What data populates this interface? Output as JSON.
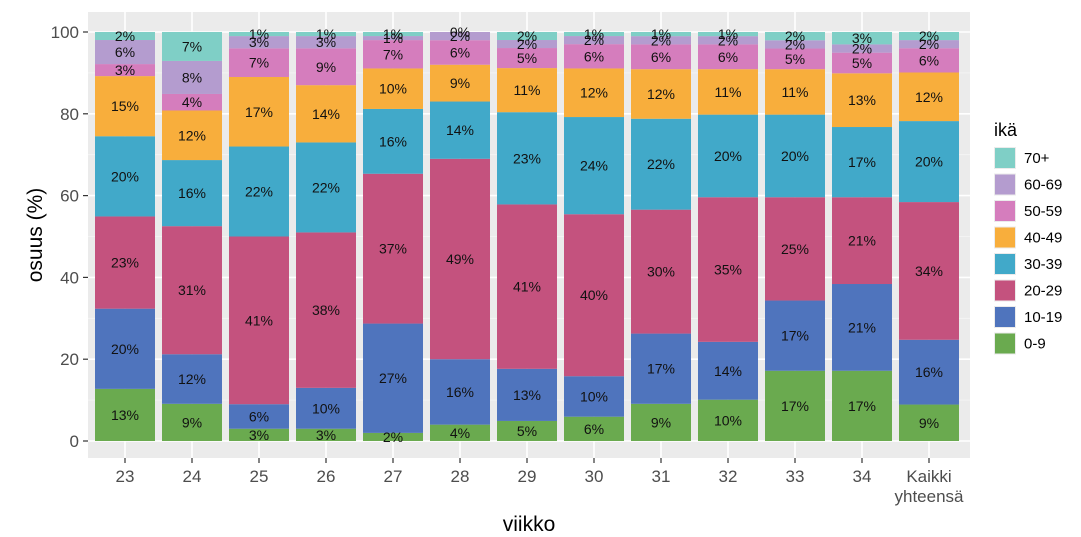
{
  "chart_data": {
    "type": "bar",
    "stacked": true,
    "xlabel": "viikko",
    "ylabel": "osuus (%)",
    "ylim": [
      0,
      100
    ],
    "yticks": [
      0,
      20,
      40,
      60,
      80,
      100
    ],
    "categories": [
      "23",
      "24",
      "25",
      "26",
      "27",
      "28",
      "29",
      "30",
      "31",
      "32",
      "33",
      "34",
      "Kaikki yhteensä"
    ],
    "grid": true,
    "legend": {
      "title": "ikä",
      "position": "right",
      "order": [
        "70+",
        "60-69",
        "50-59",
        "40-49",
        "30-39",
        "20-29",
        "10-19",
        "0-9"
      ]
    },
    "series": [
      {
        "name": "0-9",
        "color": "#6aaa4f",
        "values": [
          13,
          9,
          3,
          3,
          2,
          4,
          5,
          6,
          9,
          10,
          17,
          17,
          9
        ]
      },
      {
        "name": "10-19",
        "color": "#4f74bd",
        "values": [
          20,
          12,
          6,
          10,
          27,
          16,
          13,
          10,
          17,
          14,
          17,
          21,
          16
        ]
      },
      {
        "name": "20-29",
        "color": "#c4527e",
        "values": [
          23,
          31,
          41,
          38,
          37,
          49,
          41,
          40,
          30,
          35,
          25,
          21,
          34
        ]
      },
      {
        "name": "30-39",
        "color": "#41a9c9",
        "values": [
          20,
          16,
          22,
          22,
          16,
          14,
          23,
          24,
          22,
          20,
          20,
          17,
          20
        ]
      },
      {
        "name": "40-49",
        "color": "#f8ae3c",
        "values": [
          15,
          12,
          17,
          14,
          10,
          9,
          11,
          12,
          12,
          11,
          11,
          13,
          12
        ]
      },
      {
        "name": "50-59",
        "color": "#d57dbd",
        "values": [
          3,
          4,
          7,
          9,
          7,
          6,
          5,
          6,
          6,
          6,
          5,
          5,
          6
        ]
      },
      {
        "name": "60-69",
        "color": "#b49ccf",
        "values": [
          6,
          8,
          3,
          3,
          1,
          2,
          2,
          2,
          2,
          2,
          2,
          2,
          2
        ]
      },
      {
        "name": "70+",
        "color": "#7fcfc6",
        "values": [
          2,
          7,
          1,
          1,
          1,
          0,
          2,
          1,
          1,
          1,
          2,
          3,
          2
        ]
      }
    ]
  }
}
